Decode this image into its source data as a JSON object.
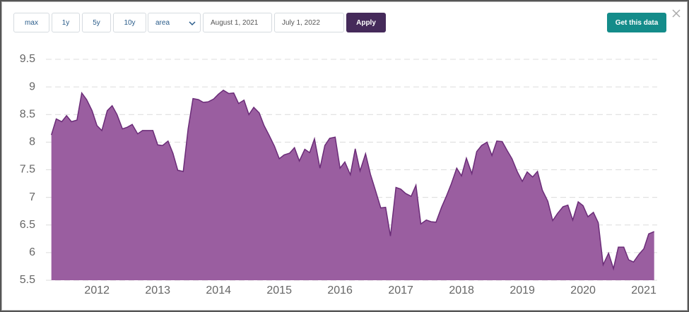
{
  "toolbar": {
    "ranges": [
      "max",
      "1y",
      "5y",
      "10y"
    ],
    "chart_style": "area",
    "start_date": "August 1, 2021",
    "end_date": "July 1, 2022",
    "apply": "Apply",
    "get_data": "Get this data"
  },
  "chart_data": {
    "type": "area",
    "color": "#9a5ea0",
    "line_color": "#6b2c78",
    "grid": true,
    "x": [
      2011.25,
      2011.33,
      2011.42,
      2011.5,
      2011.58,
      2011.67,
      2011.75,
      2011.83,
      2011.92,
      2012,
      2012.08,
      2012.17,
      2012.25,
      2012.33,
      2012.42,
      2012.5,
      2012.58,
      2012.67,
      2012.75,
      2012.83,
      2012.92,
      2013,
      2013.08,
      2013.17,
      2013.25,
      2013.33,
      2013.42,
      2013.5,
      2013.58,
      2013.67,
      2013.75,
      2013.83,
      2013.92,
      2014,
      2014.08,
      2014.17,
      2014.25,
      2014.33,
      2014.42,
      2014.5,
      2014.58,
      2014.67,
      2014.75,
      2014.83,
      2014.92,
      2015,
      2015.08,
      2015.17,
      2015.25,
      2015.33,
      2015.42,
      2015.5,
      2015.58,
      2015.67,
      2015.75,
      2015.83,
      2015.92,
      2016,
      2016.08,
      2016.17,
      2016.25,
      2016.33,
      2016.42,
      2016.5,
      2016.58,
      2016.67,
      2016.75,
      2016.83,
      2016.92,
      2017,
      2017.08,
      2017.17,
      2017.25,
      2017.33,
      2017.42,
      2017.5,
      2017.58,
      2017.67,
      2017.75,
      2017.83,
      2017.92,
      2018,
      2018.08,
      2018.17,
      2018.25,
      2018.33,
      2018.42,
      2018.5,
      2018.58,
      2018.67,
      2018.75,
      2018.83,
      2018.92,
      2019,
      2019.08,
      2019.17,
      2019.25,
      2019.33,
      2019.42,
      2019.5,
      2019.58,
      2019.67,
      2019.75,
      2019.83,
      2019.92,
      2020,
      2020.08,
      2020.17,
      2020.25,
      2020.33,
      2020.42,
      2020.5,
      2020.58,
      2020.67,
      2020.75,
      2020.83,
      2020.92,
      2021,
      2021.08,
      2021.17
    ],
    "values": [
      8.13,
      8.42,
      8.37,
      8.48,
      8.37,
      8.4,
      8.89,
      8.77,
      8.57,
      8.3,
      8.21,
      8.57,
      8.66,
      8.5,
      8.24,
      8.27,
      8.32,
      8.15,
      8.21,
      8.21,
      8.21,
      7.95,
      7.94,
      8.02,
      7.8,
      7.49,
      7.47,
      8.24,
      8.79,
      8.77,
      8.72,
      8.73,
      8.78,
      8.87,
      8.94,
      8.88,
      8.89,
      8.7,
      8.76,
      8.5,
      8.63,
      8.53,
      8.3,
      8.13,
      7.93,
      7.7,
      7.77,
      7.8,
      7.9,
      7.66,
      7.87,
      7.81,
      8.06,
      7.53,
      7.94,
      8.07,
      8.09,
      7.53,
      7.64,
      7.41,
      7.88,
      7.48,
      7.79,
      7.42,
      7.14,
      6.81,
      6.82,
      6.3,
      7.18,
      7.15,
      7.07,
      7.02,
      7.22,
      6.52,
      6.59,
      6.56,
      6.55,
      6.82,
      7.02,
      7.24,
      7.53,
      7.39,
      7.71,
      7.43,
      7.83,
      7.94,
      8.0,
      7.76,
      8.02,
      8.01,
      7.85,
      7.7,
      7.46,
      7.29,
      7.46,
      7.37,
      7.47,
      7.13,
      6.93,
      6.58,
      6.71,
      6.83,
      6.86,
      6.59,
      6.92,
      6.85,
      6.65,
      6.73,
      6.54,
      5.78,
      5.99,
      5.71,
      6.1,
      6.1,
      5.87,
      5.83,
      5.97,
      6.07,
      6.34,
      6.38
    ],
    "xlim": [
      2011.16,
      2021.22
    ],
    "xticks": [
      2012,
      2013,
      2014,
      2015,
      2016,
      2017,
      2018,
      2019,
      2020,
      2021
    ],
    "ylim": [
      5.5,
      9.5
    ],
    "yticks": [
      5.5,
      6,
      6.5,
      7,
      7.5,
      8,
      8.5,
      9,
      9.5
    ]
  }
}
